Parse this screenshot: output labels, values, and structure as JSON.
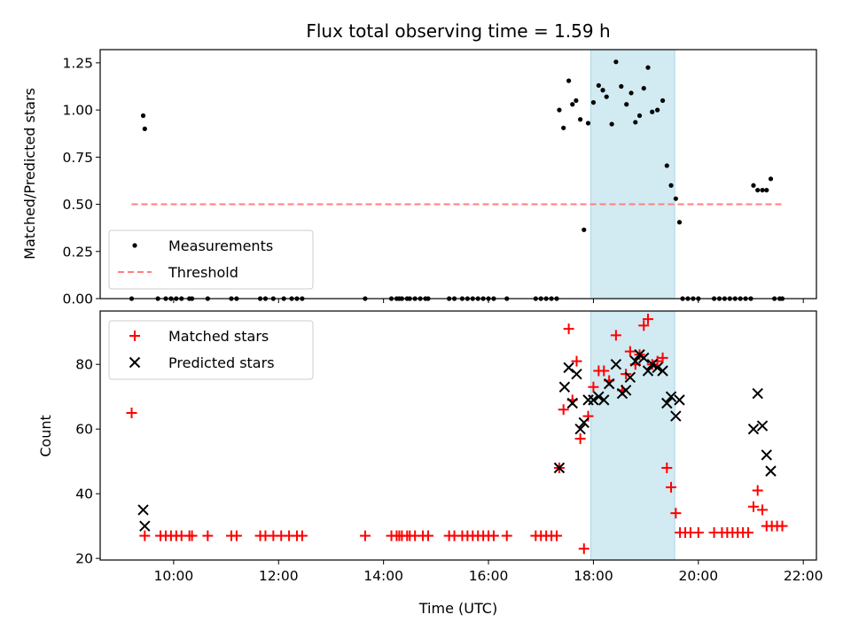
{
  "chart_data": [
    {
      "type": "scatter",
      "title": "Flux total observing time = 1.59 h",
      "xlabel": "",
      "ylabel": "Matched/Predicted stars",
      "xlim": [
        8.6,
        22.25
      ],
      "ylim": [
        0,
        1.32
      ],
      "yticks": [
        0,
        0.25,
        0.5,
        0.75,
        1.0,
        1.25
      ],
      "ytick_labels": [
        "0.00",
        "0.25",
        "0.50",
        "0.75",
        "1.00",
        "1.25"
      ],
      "highlight_span": [
        17.95,
        19.55
      ],
      "highlight_color": "#add8e6",
      "legend_position": "lower left",
      "series": [
        {
          "name": "Measurements",
          "marker": "dot",
          "color": "#000000",
          "points": [
            [
              9.2,
              0
            ],
            [
              9.42,
              0.97
            ],
            [
              9.45,
              0.9
            ],
            [
              9.7,
              0
            ],
            [
              9.85,
              0
            ],
            [
              9.95,
              0
            ],
            [
              10.05,
              0
            ],
            [
              10.15,
              0
            ],
            [
              10.3,
              0
            ],
            [
              10.35,
              0
            ],
            [
              10.65,
              0
            ],
            [
              11.1,
              0
            ],
            [
              11.2,
              0
            ],
            [
              11.65,
              0
            ],
            [
              11.75,
              0
            ],
            [
              11.9,
              0
            ],
            [
              12.1,
              0
            ],
            [
              12.25,
              0
            ],
            [
              12.35,
              0
            ],
            [
              12.45,
              0
            ],
            [
              13.65,
              0
            ],
            [
              14.15,
              0
            ],
            [
              14.25,
              0
            ],
            [
              14.3,
              0
            ],
            [
              14.35,
              0
            ],
            [
              14.45,
              0
            ],
            [
              14.5,
              0
            ],
            [
              14.6,
              0
            ],
            [
              14.7,
              0
            ],
            [
              14.8,
              0
            ],
            [
              14.85,
              0
            ],
            [
              15.25,
              0
            ],
            [
              15.35,
              0
            ],
            [
              15.5,
              0
            ],
            [
              15.6,
              0
            ],
            [
              15.7,
              0
            ],
            [
              15.8,
              0
            ],
            [
              15.9,
              0
            ],
            [
              16.0,
              0
            ],
            [
              16.1,
              0
            ],
            [
              16.35,
              0
            ],
            [
              16.9,
              0
            ],
            [
              17.0,
              0
            ],
            [
              17.1,
              0
            ],
            [
              17.2,
              0
            ],
            [
              17.3,
              0
            ],
            [
              17.35,
              1.0
            ],
            [
              17.43,
              0.905
            ],
            [
              17.53,
              1.155
            ],
            [
              17.6,
              1.03
            ],
            [
              17.67,
              1.05
            ],
            [
              17.75,
              0.95
            ],
            [
              17.82,
              0.365
            ],
            [
              17.9,
              0.93
            ],
            [
              18.0,
              1.04
            ],
            [
              18.1,
              1.13
            ],
            [
              18.18,
              1.105
            ],
            [
              18.25,
              1.07
            ],
            [
              18.35,
              0.925
            ],
            [
              18.43,
              1.255
            ],
            [
              18.53,
              1.125
            ],
            [
              18.63,
              1.03
            ],
            [
              18.72,
              1.09
            ],
            [
              18.8,
              0.935
            ],
            [
              18.88,
              0.97
            ],
            [
              18.96,
              1.115
            ],
            [
              19.04,
              1.225
            ],
            [
              19.12,
              0.99
            ],
            [
              19.22,
              1.0
            ],
            [
              19.32,
              1.05
            ],
            [
              19.4,
              0.705
            ],
            [
              19.48,
              0.6
            ],
            [
              19.57,
              0.53
            ],
            [
              19.64,
              0.405
            ],
            [
              19.7,
              0
            ],
            [
              19.8,
              0
            ],
            [
              19.9,
              0
            ],
            [
              20.0,
              0
            ],
            [
              20.3,
              0
            ],
            [
              20.4,
              0
            ],
            [
              20.5,
              0
            ],
            [
              20.6,
              0
            ],
            [
              20.7,
              0
            ],
            [
              20.8,
              0
            ],
            [
              20.9,
              0
            ],
            [
              21.0,
              0
            ],
            [
              21.05,
              0.6
            ],
            [
              21.13,
              0.575
            ],
            [
              21.22,
              0.575
            ],
            [
              21.3,
              0.575
            ],
            [
              21.38,
              0.635
            ],
            [
              21.45,
              0
            ],
            [
              21.55,
              0
            ],
            [
              21.6,
              0
            ]
          ]
        },
        {
          "name": "Threshold",
          "line": "dashed",
          "color": "#ff7f7f",
          "points": [
            [
              9.2,
              0.5
            ],
            [
              21.62,
              0.5
            ]
          ]
        }
      ]
    },
    {
      "type": "scatter",
      "title": "",
      "xlabel": "Time (UTC)",
      "ylabel": "Count",
      "xlim": [
        8.6,
        22.25
      ],
      "ylim": [
        19.5,
        96.5
      ],
      "yticks": [
        20,
        40,
        60,
        80
      ],
      "ytick_labels": [
        "20",
        "40",
        "60",
        "80"
      ],
      "xticks": [
        10,
        12,
        14,
        16,
        18,
        20,
        22
      ],
      "xtick_labels": [
        "10:00",
        "12:00",
        "14:00",
        "16:00",
        "18:00",
        "20:00",
        "22:00"
      ],
      "highlight_span": [
        17.95,
        19.55
      ],
      "highlight_color": "#add8e6",
      "legend_position": "upper left",
      "series": [
        {
          "name": "Matched stars",
          "marker": "plus",
          "color": "#ff0000",
          "points": [
            [
              9.2,
              65
            ],
            [
              9.45,
              27
            ],
            [
              9.75,
              27
            ],
            [
              9.85,
              27
            ],
            [
              9.95,
              27
            ],
            [
              10.05,
              27
            ],
            [
              10.15,
              27
            ],
            [
              10.3,
              27
            ],
            [
              10.35,
              27
            ],
            [
              10.65,
              27
            ],
            [
              11.1,
              27
            ],
            [
              11.2,
              27
            ],
            [
              11.65,
              27
            ],
            [
              11.75,
              27
            ],
            [
              11.9,
              27
            ],
            [
              12.05,
              27
            ],
            [
              12.2,
              27
            ],
            [
              12.35,
              27
            ],
            [
              12.45,
              27
            ],
            [
              13.65,
              27
            ],
            [
              14.15,
              27
            ],
            [
              14.25,
              27
            ],
            [
              14.3,
              27
            ],
            [
              14.35,
              27
            ],
            [
              14.45,
              27
            ],
            [
              14.5,
              27
            ],
            [
              14.6,
              27
            ],
            [
              14.75,
              27
            ],
            [
              14.85,
              27
            ],
            [
              15.25,
              27
            ],
            [
              15.35,
              27
            ],
            [
              15.5,
              27
            ],
            [
              15.6,
              27
            ],
            [
              15.7,
              27
            ],
            [
              15.8,
              27
            ],
            [
              15.9,
              27
            ],
            [
              16.0,
              27
            ],
            [
              16.1,
              27
            ],
            [
              16.35,
              27
            ],
            [
              16.9,
              27
            ],
            [
              17.0,
              27
            ],
            [
              17.1,
              27
            ],
            [
              17.2,
              27
            ],
            [
              17.3,
              27
            ],
            [
              17.35,
              48
            ],
            [
              17.43,
              66
            ],
            [
              17.53,
              91
            ],
            [
              17.6,
              69
            ],
            [
              17.68,
              81
            ],
            [
              17.75,
              57
            ],
            [
              17.82,
              23
            ],
            [
              17.9,
              64
            ],
            [
              18.0,
              73
            ],
            [
              18.1,
              78
            ],
            [
              18.2,
              78
            ],
            [
              18.3,
              75
            ],
            [
              18.43,
              89
            ],
            [
              18.55,
              72
            ],
            [
              18.62,
              77
            ],
            [
              18.7,
              84
            ],
            [
              18.8,
              80
            ],
            [
              18.88,
              83
            ],
            [
              18.96,
              92
            ],
            [
              19.04,
              94
            ],
            [
              19.12,
              80
            ],
            [
              19.22,
              81
            ],
            [
              19.32,
              82
            ],
            [
              19.4,
              48
            ],
            [
              19.48,
              42
            ],
            [
              19.57,
              34
            ],
            [
              19.65,
              28
            ],
            [
              19.75,
              28
            ],
            [
              19.85,
              28
            ],
            [
              20.0,
              28
            ],
            [
              20.3,
              28
            ],
            [
              20.45,
              28
            ],
            [
              20.55,
              28
            ],
            [
              20.65,
              28
            ],
            [
              20.75,
              28
            ],
            [
              20.85,
              28
            ],
            [
              20.95,
              28
            ],
            [
              21.05,
              36
            ],
            [
              21.13,
              41
            ],
            [
              21.22,
              35
            ],
            [
              21.3,
              30
            ],
            [
              21.4,
              30
            ],
            [
              21.5,
              30
            ],
            [
              21.6,
              30
            ]
          ]
        },
        {
          "name": "Predicted stars",
          "marker": "x",
          "color": "#000000",
          "points": [
            [
              9.42,
              35
            ],
            [
              9.45,
              30
            ],
            [
              17.35,
              48
            ],
            [
              17.45,
              73
            ],
            [
              17.53,
              79
            ],
            [
              17.6,
              68
            ],
            [
              17.68,
              77
            ],
            [
              17.75,
              60
            ],
            [
              17.82,
              62
            ],
            [
              17.9,
              69
            ],
            [
              18.0,
              69
            ],
            [
              18.1,
              70
            ],
            [
              18.2,
              69
            ],
            [
              18.3,
              74
            ],
            [
              18.43,
              80
            ],
            [
              18.55,
              71
            ],
            [
              18.62,
              72
            ],
            [
              18.7,
              76
            ],
            [
              18.8,
              81
            ],
            [
              18.88,
              83
            ],
            [
              18.96,
              82
            ],
            [
              19.04,
              78
            ],
            [
              19.12,
              80
            ],
            [
              19.22,
              79
            ],
            [
              19.32,
              78
            ],
            [
              19.4,
              68
            ],
            [
              19.48,
              70
            ],
            [
              19.57,
              64
            ],
            [
              19.64,
              69
            ],
            [
              21.05,
              60
            ],
            [
              21.13,
              71
            ],
            [
              21.22,
              61
            ],
            [
              21.3,
              52
            ],
            [
              21.38,
              47
            ]
          ]
        }
      ]
    }
  ]
}
